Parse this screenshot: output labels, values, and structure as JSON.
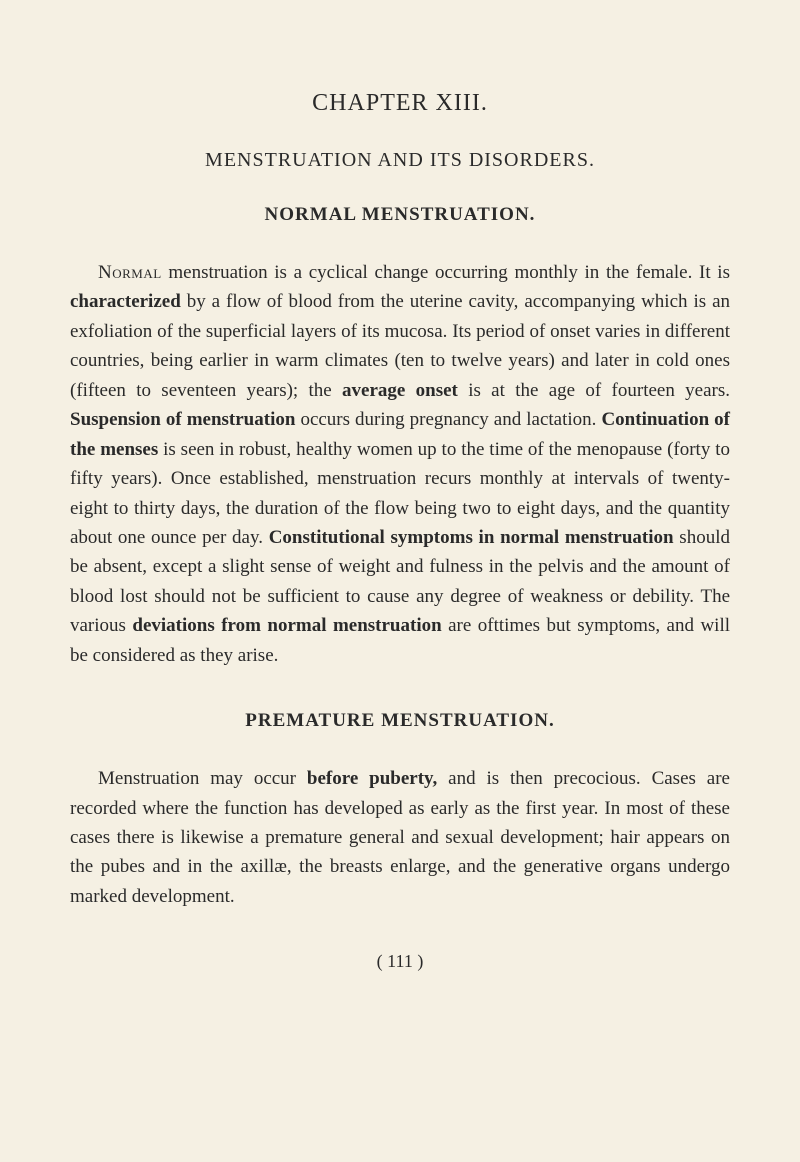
{
  "chapter_title": "CHAPTER XIII.",
  "section_title": "MENSTRUATION AND ITS DISORDERS.",
  "subsection1_title": "NORMAL MENSTRUATION.",
  "para1_start_smallcaps": "Normal",
  "para1_text1": " menstruation is a cyclical change occurring monthly in the female. It is ",
  "para1_bold1": "characterized",
  "para1_text2": " by a flow of blood from the uterine cavity, accompanying which is an exfoliation of the superficial layers of its mucosa. Its period of onset varies in different countries, being earlier in warm climates (ten to twelve years) and later in cold ones (fifteen to seventeen years); the ",
  "para1_bold2": "average onset",
  "para1_text3": " is at the age of fourteen years. ",
  "para1_bold3": "Suspension of menstruation",
  "para1_text4": " occurs during pregnancy and lactation. ",
  "para1_bold4": "Continuation of the menses",
  "para1_text5": " is seen in robust, healthy women up to the time of the menopause (forty to fifty years). Once established, menstruation recurs monthly at intervals of twenty-eight to thirty days, the duration of the flow being two to eight days, and the quantity about one ounce per day. ",
  "para1_bold5": "Constitutional symptoms in normal menstruation",
  "para1_text6": " should be absent, except a slight sense of weight and fulness in the pelvis and the amount of blood lost should not be sufficient to cause any degree of weakness or debility. The various ",
  "para1_bold6": "deviations from normal menstruation",
  "para1_text7": " are ofttimes but symptoms, and will be considered as they arise.",
  "subsection2_title": "PREMATURE MENSTRUATION.",
  "para2_text1": "Menstruation may occur ",
  "para2_bold1": "before puberty,",
  "para2_text2": " and is then precocious. Cases are recorded where the function has developed as early as the first year. In most of these cases there is likewise a premature general and sexual development; hair appears on the pubes and in the axillæ, the breasts enlarge, and the generative organs undergo marked development.",
  "page_number": "( 111 )"
}
